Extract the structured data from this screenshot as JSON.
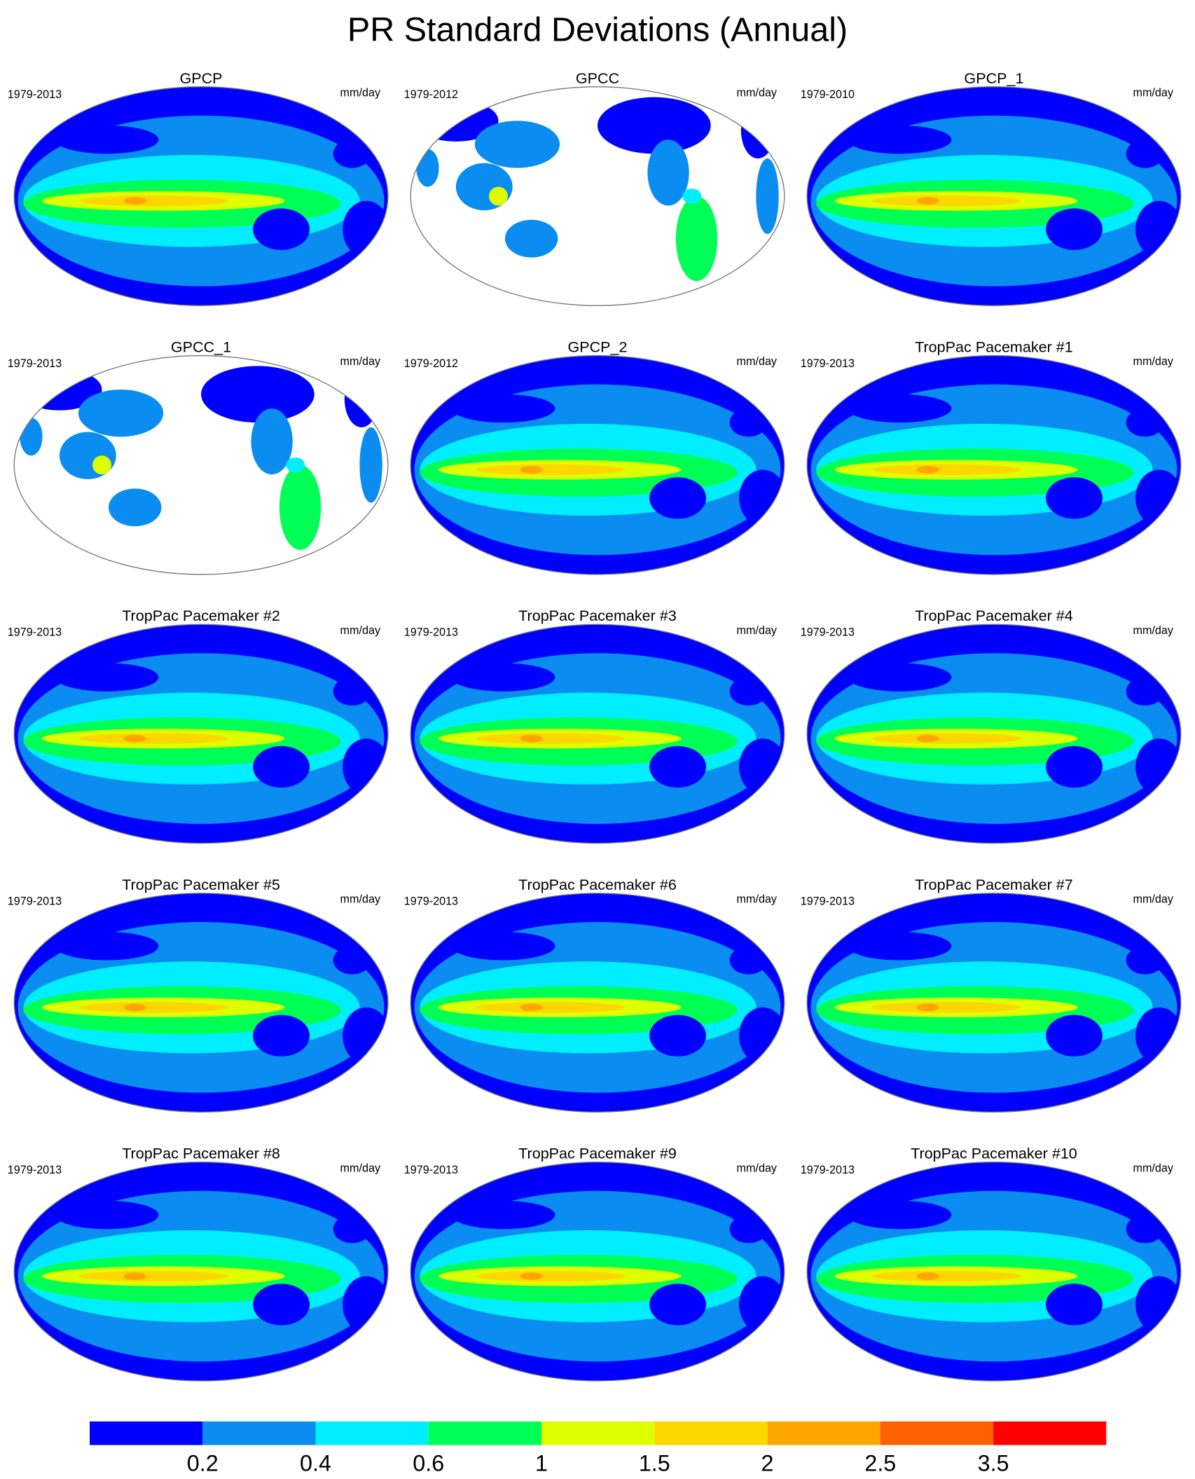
{
  "header": {
    "title": "PR Standard Deviations (Annual)"
  },
  "panels": [
    {
      "title": "GPCP",
      "period": "1979-2013",
      "units": "mm/day"
    },
    {
      "title": "GPCC",
      "period": "1979-2012",
      "units": "mm/day"
    },
    {
      "title": "GPCP_1",
      "period": "1979-2010",
      "units": "mm/day"
    },
    {
      "title": "GPCC_1",
      "period": "1979-2013",
      "units": "mm/day"
    },
    {
      "title": "GPCP_2",
      "period": "1979-2012",
      "units": "mm/day"
    },
    {
      "title": "TropPac Pacemaker #1",
      "period": "1979-2013",
      "units": "mm/day"
    },
    {
      "title": "TropPac Pacemaker #2",
      "period": "1979-2013",
      "units": "mm/day"
    },
    {
      "title": "TropPac Pacemaker #3",
      "period": "1979-2013",
      "units": "mm/day"
    },
    {
      "title": "TropPac Pacemaker #4",
      "period": "1979-2013",
      "units": "mm/day"
    },
    {
      "title": "TropPac Pacemaker #5",
      "period": "1979-2013",
      "units": "mm/day"
    },
    {
      "title": "TropPac Pacemaker #6",
      "period": "1979-2013",
      "units": "mm/day"
    },
    {
      "title": "TropPac Pacemaker #7",
      "period": "1979-2013",
      "units": "mm/day"
    },
    {
      "title": "TropPac Pacemaker #8",
      "period": "1979-2013",
      "units": "mm/day"
    },
    {
      "title": "TropPac Pacemaker #9",
      "period": "1979-2013",
      "units": "mm/day"
    },
    {
      "title": "TropPac Pacemaker #10",
      "period": "1979-2013",
      "units": "mm/day"
    }
  ],
  "colorbar": {
    "colors": [
      "#0000ff",
      "#0a8cf0",
      "#00eeff",
      "#00ff55",
      "#ddff00",
      "#ffd700",
      "#ffa500",
      "#ff6000",
      "#ff0000"
    ],
    "labels": [
      "0.2",
      "0.4",
      "0.6",
      "1",
      "1.5",
      "2",
      "2.5",
      "3.5"
    ]
  }
}
